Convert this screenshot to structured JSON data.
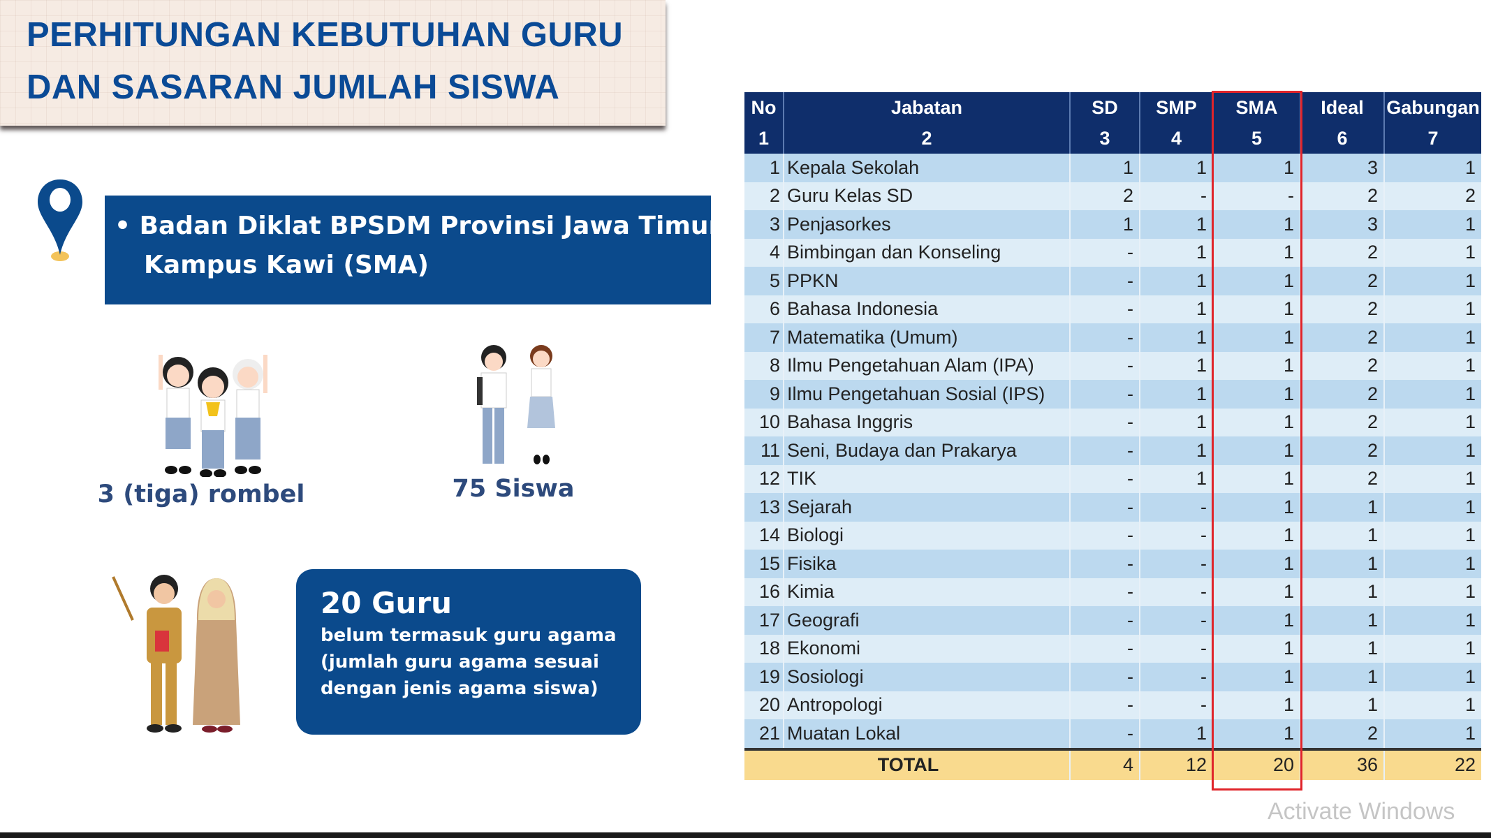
{
  "title": {
    "line1": "PERHITUNGAN KEBUTUHAN GURU",
    "line2": "DAN SASARAN JUMLAH SISWA"
  },
  "location": {
    "icon": "map-pin-icon",
    "bullet": "•",
    "line1": "Badan Diklat BPSDM Provinsi Jawa Timur",
    "line2": "Kampus Kawi (SMA)"
  },
  "stats": {
    "rombel": "3 (tiga) rombel",
    "siswa": "75 Siswa"
  },
  "guru": {
    "title": "20 Guru",
    "sub1": "belum termasuk guru agama",
    "sub2": "(jumlah guru agama sesuai",
    "sub3": "dengan jenis agama siswa)"
  },
  "table": {
    "headers": [
      "No",
      "Jabatan",
      "SD",
      "SMP",
      "SMA",
      "Ideal",
      "Gabungan"
    ],
    "header_numbers": [
      "1",
      "2",
      "3",
      "4",
      "5",
      "6",
      "7"
    ],
    "rows": [
      [
        "1",
        "Kepala Sekolah",
        "1",
        "1",
        "1",
        "3",
        "1"
      ],
      [
        "2",
        "Guru Kelas SD",
        "2",
        "-",
        "-",
        "2",
        "2"
      ],
      [
        "3",
        "Penjasorkes",
        "1",
        "1",
        "1",
        "3",
        "1"
      ],
      [
        "4",
        "Bimbingan dan Konseling",
        "-",
        "1",
        "1",
        "2",
        "1"
      ],
      [
        "5",
        "PPKN",
        "-",
        "1",
        "1",
        "2",
        "1"
      ],
      [
        "6",
        "Bahasa Indonesia",
        "-",
        "1",
        "1",
        "2",
        "1"
      ],
      [
        "7",
        "Matematika (Umum)",
        "-",
        "1",
        "1",
        "2",
        "1"
      ],
      [
        "8",
        "Ilmu Pengetahuan Alam (IPA)",
        "-",
        "1",
        "1",
        "2",
        "1"
      ],
      [
        "9",
        "Ilmu Pengetahuan Sosial (IPS)",
        "-",
        "1",
        "1",
        "2",
        "1"
      ],
      [
        "10",
        "Bahasa Inggris",
        "-",
        "1",
        "1",
        "2",
        "1"
      ],
      [
        "11",
        "Seni, Budaya dan Prakarya",
        "-",
        "1",
        "1",
        "2",
        "1"
      ],
      [
        "12",
        "TIK",
        "-",
        "1",
        "1",
        "2",
        "1"
      ],
      [
        "13",
        "Sejarah",
        "-",
        "-",
        "1",
        "1",
        "1"
      ],
      [
        "14",
        "Biologi",
        "-",
        "-",
        "1",
        "1",
        "1"
      ],
      [
        "15",
        "Fisika",
        "-",
        "-",
        "1",
        "1",
        "1"
      ],
      [
        "16",
        "Kimia",
        "-",
        "-",
        "1",
        "1",
        "1"
      ],
      [
        "17",
        "Geografi",
        "-",
        "-",
        "1",
        "1",
        "1"
      ],
      [
        "18",
        "Ekonomi",
        "-",
        "-",
        "1",
        "1",
        "1"
      ],
      [
        "19",
        "Sosiologi",
        "-",
        "-",
        "1",
        "1",
        "1"
      ],
      [
        "20",
        "Antropologi",
        "-",
        "-",
        "1",
        "1",
        "1"
      ],
      [
        "21",
        "Muatan Lokal",
        "-",
        "1",
        "1",
        "2",
        "1"
      ]
    ],
    "total": {
      "label": "TOTAL",
      "values": [
        "4",
        "12",
        "20",
        "36",
        "22"
      ]
    },
    "highlight_column": "SMA",
    "highlight_color": "#e0242a"
  },
  "watermark": "Activate Windows",
  "colors": {
    "brand_blue": "#0b4a8c",
    "header_navy": "#0f2e6b",
    "total_row": "#f9da8e",
    "row_dark": "#bcd9ef",
    "row_light": "#deedf7"
  }
}
